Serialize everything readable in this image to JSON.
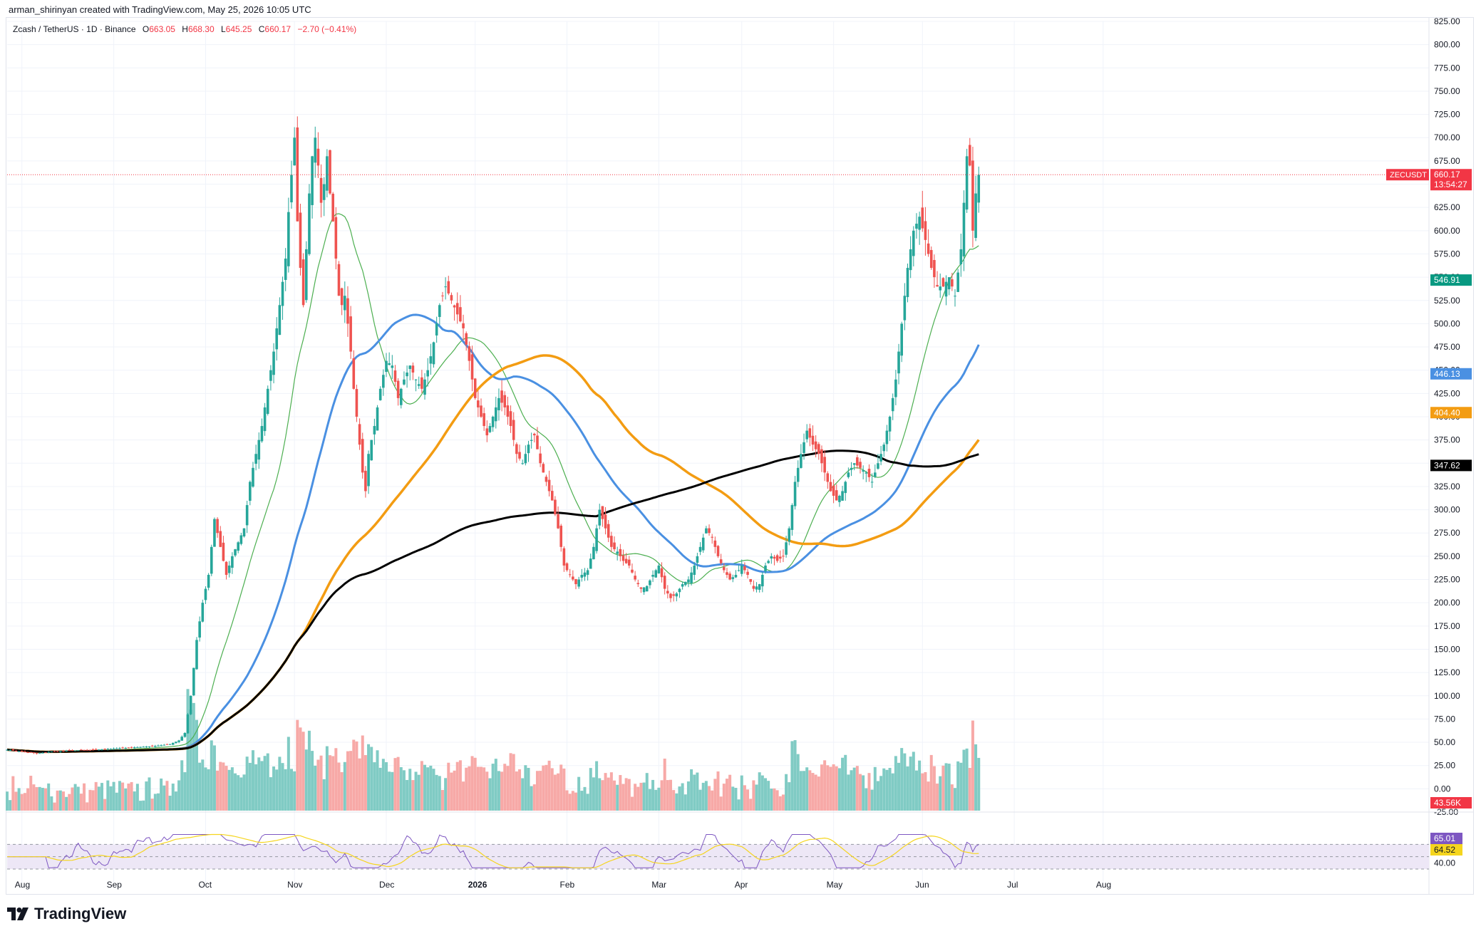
{
  "header": {
    "credit": "arman_shirinyan created with TradingView.com, May 25, 2026 10:05 UTC"
  },
  "legend": {
    "symbol": "Zcash / TetherUS · 1D · Binance",
    "o_label": "O",
    "o_value": "663.05",
    "h_label": "H",
    "h_value": "668.30",
    "l_label": "L",
    "l_value": "645.25",
    "c_label": "C",
    "c_value": "660.17",
    "change": "−2.70 (−0.41%)"
  },
  "footer": {
    "brand": "TradingView",
    "logo_icon": "tradingview-logo-icon"
  },
  "colors": {
    "up": "#26a69a",
    "down": "#ef5350",
    "vol_up": "#80cbc4",
    "vol_down": "#f7a9a7",
    "sma_short": "#4caf50",
    "sma_mid": "#4a90e2",
    "sma_long": "#f39c12",
    "sma_200": "#000000",
    "rsi": "#7e57c2",
    "rsi_ma": "#f5d51e",
    "rsi_band": "#ede7f6"
  },
  "chart_data": {
    "type": "candlestick",
    "title": "Zcash / TetherUS · 1D · Binance",
    "price_axis": {
      "ticks": [
        "825.00",
        "800.00",
        "775.00",
        "750.00",
        "725.00",
        "700.00",
        "675.00",
        "650.00",
        "625.00",
        "600.00",
        "575.00",
        "550.00",
        "525.00",
        "500.00",
        "475.00",
        "450.00",
        "425.00",
        "400.00",
        "375.00",
        "350.00",
        "325.00",
        "300.00",
        "275.00",
        "250.00",
        "225.00",
        "200.00",
        "175.00",
        "150.00",
        "125.00",
        "100.00",
        "75.00",
        "50.00",
        "25.00",
        "0.00",
        "-25.00"
      ],
      "ylim": [
        -25,
        825
      ]
    },
    "time_axis": {
      "labels": [
        "Aug",
        "Sep",
        "Oct",
        "Nov",
        "Dec",
        "2026",
        "Feb",
        "Mar",
        "Apr",
        "May",
        "Jun",
        "Jul",
        "Aug"
      ],
      "label_months_offset": [
        0,
        1,
        2,
        3,
        4,
        5,
        6,
        7,
        8,
        9,
        10,
        11,
        12
      ]
    },
    "price_markers": [
      {
        "label": "ZECUSDT",
        "value": "660.17",
        "countdown": "13:54:27",
        "price": 660.17,
        "color": "#f23645"
      },
      {
        "label": "",
        "value": "546.91",
        "price": 546.91,
        "color": "#089981"
      },
      {
        "label": "",
        "value": "446.13",
        "price": 446.13,
        "color": "#4a90e2"
      },
      {
        "label": "",
        "value": "404.40",
        "price": 404.4,
        "color": "#f39c12"
      },
      {
        "label": "",
        "value": "347.62",
        "price": 347.62,
        "color": "#000000"
      }
    ],
    "volume_marker": {
      "value": "43.56K",
      "color": "#f23645"
    },
    "close_keypoints": [
      [
        0,
        42
      ],
      [
        5,
        40
      ],
      [
        10,
        38
      ],
      [
        15,
        40
      ],
      [
        20,
        41
      ],
      [
        30,
        42
      ],
      [
        40,
        44
      ],
      [
        50,
        46
      ],
      [
        55,
        48
      ],
      [
        58,
        52
      ],
      [
        60,
        60
      ],
      [
        62,
        100
      ],
      [
        64,
        160
      ],
      [
        66,
        200
      ],
      [
        68,
        230
      ],
      [
        70,
        290
      ],
      [
        72,
        260
      ],
      [
        74,
        230
      ],
      [
        76,
        250
      ],
      [
        78,
        265
      ],
      [
        80,
        280
      ],
      [
        82,
        330
      ],
      [
        84,
        360
      ],
      [
        86,
        390
      ],
      [
        88,
        430
      ],
      [
        90,
        470
      ],
      [
        92,
        520
      ],
      [
        94,
        570
      ],
      [
        95,
        620
      ],
      [
        96,
        660
      ],
      [
        97,
        700
      ],
      [
        98,
        610
      ],
      [
        99,
        560
      ],
      [
        100,
        520
      ],
      [
        101,
        580
      ],
      [
        102,
        640
      ],
      [
        103,
        680
      ],
      [
        104,
        700
      ],
      [
        105,
        670
      ],
      [
        106,
        630
      ],
      [
        107,
        650
      ],
      [
        108,
        680
      ],
      [
        109,
        640
      ],
      [
        110,
        610
      ],
      [
        111,
        570
      ],
      [
        112,
        530
      ],
      [
        113,
        520
      ],
      [
        114,
        530
      ],
      [
        115,
        500
      ],
      [
        116,
        470
      ],
      [
        117,
        430
      ],
      [
        118,
        400
      ],
      [
        120,
        340
      ],
      [
        121,
        320
      ],
      [
        122,
        360
      ],
      [
        124,
        390
      ],
      [
        126,
        430
      ],
      [
        128,
        460
      ],
      [
        130,
        455
      ],
      [
        132,
        420
      ],
      [
        134,
        440
      ],
      [
        136,
        455
      ],
      [
        138,
        440
      ],
      [
        140,
        430
      ],
      [
        142,
        450
      ],
      [
        144,
        480
      ],
      [
        146,
        520
      ],
      [
        148,
        540
      ],
      [
        150,
        525
      ],
      [
        152,
        510
      ],
      [
        154,
        495
      ],
      [
        156,
        460
      ],
      [
        158,
        420
      ],
      [
        160,
        400
      ],
      [
        162,
        380
      ],
      [
        164,
        400
      ],
      [
        166,
        420
      ],
      [
        168,
        410
      ],
      [
        170,
        390
      ],
      [
        172,
        360
      ],
      [
        174,
        350
      ],
      [
        176,
        370
      ],
      [
        178,
        380
      ],
      [
        180,
        350
      ],
      [
        182,
        330
      ],
      [
        184,
        310
      ],
      [
        186,
        280
      ],
      [
        188,
        240
      ],
      [
        190,
        230
      ],
      [
        192,
        220
      ],
      [
        194,
        230
      ],
      [
        196,
        235
      ],
      [
        198,
        260
      ],
      [
        200,
        300
      ],
      [
        202,
        280
      ],
      [
        204,
        260
      ],
      [
        206,
        255
      ],
      [
        208,
        245
      ],
      [
        210,
        240
      ],
      [
        212,
        225
      ],
      [
        214,
        215
      ],
      [
        216,
        218
      ],
      [
        218,
        230
      ],
      [
        220,
        240
      ],
      [
        222,
        215
      ],
      [
        224,
        205
      ],
      [
        226,
        210
      ],
      [
        228,
        220
      ],
      [
        230,
        225
      ],
      [
        232,
        240
      ],
      [
        234,
        260
      ],
      [
        236,
        280
      ],
      [
        238,
        270
      ],
      [
        240,
        250
      ],
      [
        242,
        235
      ],
      [
        244,
        225
      ],
      [
        246,
        230
      ],
      [
        248,
        240
      ],
      [
        250,
        230
      ],
      [
        252,
        215
      ],
      [
        254,
        220
      ],
      [
        256,
        240
      ],
      [
        258,
        250
      ],
      [
        260,
        245
      ],
      [
        262,
        250
      ],
      [
        264,
        280
      ],
      [
        266,
        330
      ],
      [
        268,
        360
      ],
      [
        270,
        385
      ],
      [
        272,
        370
      ],
      [
        274,
        360
      ],
      [
        276,
        340
      ],
      [
        278,
        320
      ],
      [
        280,
        310
      ],
      [
        282,
        320
      ],
      [
        284,
        340
      ],
      [
        286,
        350
      ],
      [
        288,
        345
      ],
      [
        290,
        340
      ],
      [
        292,
        330
      ],
      [
        294,
        350
      ],
      [
        296,
        370
      ],
      [
        298,
        400
      ],
      [
        300,
        440
      ],
      [
        302,
        500
      ],
      [
        304,
        560
      ],
      [
        306,
        600
      ],
      [
        308,
        615
      ],
      [
        310,
        590
      ],
      [
        312,
        560
      ],
      [
        314,
        540
      ],
      [
        316,
        540
      ],
      [
        318,
        550
      ],
      [
        320,
        530
      ],
      [
        322,
        580
      ],
      [
        324,
        680
      ],
      [
        325,
        670
      ],
      [
        326,
        600
      ],
      [
        327,
        640
      ],
      [
        328,
        660
      ]
    ],
    "days": 329
  }
}
